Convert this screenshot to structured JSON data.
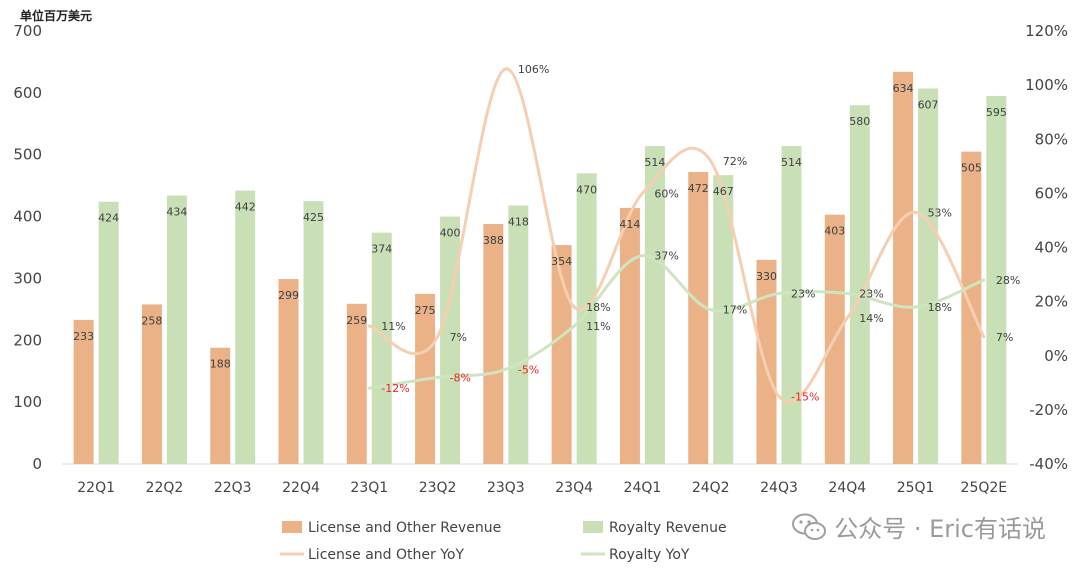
{
  "chart_data": {
    "type": "bar+line",
    "unit_label": "单位百万美元",
    "categories": [
      "22Q1",
      "22Q2",
      "22Q3",
      "22Q4",
      "23Q1",
      "23Q2",
      "23Q3",
      "23Q4",
      "24Q1",
      "24Q2",
      "24Q3",
      "24Q4",
      "25Q1",
      "25Q2E"
    ],
    "y_left": {
      "min": 0,
      "max": 700,
      "ticks": [
        0,
        100,
        200,
        300,
        400,
        500,
        600,
        700
      ]
    },
    "y_right": {
      "min": -40,
      "max": 120,
      "ticks": [
        "-40%",
        "-20%",
        "0%",
        "20%",
        "40%",
        "60%",
        "80%",
        "100%",
        "120%"
      ]
    },
    "bar_series": [
      {
        "name": "License and Other Revenue",
        "color": "#ebb287",
        "values": [
          233,
          258,
          188,
          299,
          259,
          275,
          388,
          354,
          414,
          472,
          330,
          403,
          634,
          505
        ]
      },
      {
        "name": "Royalty Revenue",
        "color": "#c9e0b6",
        "values": [
          424,
          434,
          442,
          425,
          374,
          400,
          418,
          470,
          514,
          467,
          514,
          580,
          607,
          595
        ]
      }
    ],
    "line_series": [
      {
        "name": "License and Other YoY",
        "color": "#f6cfb2",
        "start_index": 4,
        "values": [
          11,
          7,
          106,
          18,
          60,
          72,
          -15,
          14,
          53,
          7
        ],
        "labels": [
          "11%",
          "7%",
          "106%",
          "18%",
          "60%",
          "72%",
          "-15%",
          "14%",
          "53%",
          "7%"
        ]
      },
      {
        "name": "Royalty YoY",
        "color": "#cfe5c0",
        "start_index": 4,
        "values": [
          -12,
          -8,
          -5,
          11,
          37,
          17,
          23,
          23,
          18,
          28
        ],
        "labels": [
          "-12%",
          "-8%",
          "-5%",
          "11%",
          "37%",
          "17%",
          "23%",
          "23%",
          "18%",
          "28%"
        ]
      }
    ],
    "legend": [
      "License and Other Revenue",
      "Royalty Revenue",
      "License and Other YoY",
      "Royalty YoY"
    ],
    "watermark": "公众号 · Eric有话说"
  }
}
